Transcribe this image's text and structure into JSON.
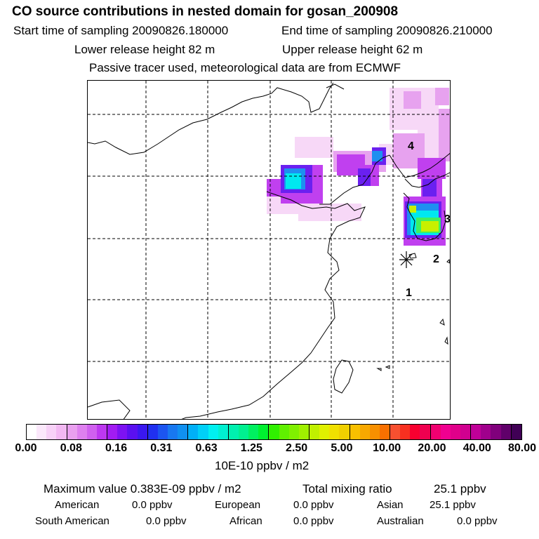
{
  "header": {
    "title": "CO  source contributions in nested domain for gosan_200908",
    "start_time": "Start time of sampling 20090826.180000",
    "end_time": "End time of sampling 20090826.210000",
    "lower_release": "Lower release height   82 m",
    "upper_release": "Upper release height   62 m",
    "tracer_note": "Passive tracer used, meteorological data are from ECMWF"
  },
  "chart_data": {
    "type": "heatmap",
    "title": "CO  source contributions in nested domain for gosan_200908",
    "colorbar": {
      "tick_labels": [
        "0.00",
        "0.08",
        "0.16",
        "0.31",
        "0.63",
        "1.25",
        "2.50",
        "5.00",
        "10.00",
        "20.00",
        "40.00",
        "80.00"
      ],
      "unit": "10E-10 ppbv / m2",
      "colors": [
        "#ffffff",
        "#fbe8fb",
        "#f7d1f7",
        "#f2b8f2",
        "#e9a0ef",
        "#de80ef",
        "#d060ef",
        "#bd38f0",
        "#a21cf2",
        "#7d12f2",
        "#5a10f0",
        "#3a18f0",
        "#2030f0",
        "#1c55f0",
        "#1878f0",
        "#1090f0",
        "#00b0f8",
        "#00d0f8",
        "#00f0f0",
        "#00f0d0",
        "#00f0b0",
        "#00f090",
        "#00f060",
        "#00f030",
        "#30f000",
        "#60f000",
        "#80f000",
        "#a0f000",
        "#c0f000",
        "#e0f000",
        "#f0e000",
        "#f0d000",
        "#f8c000",
        "#f8a800",
        "#f89000",
        "#f87000",
        "#f85030",
        "#f83020",
        "#f80030",
        "#f00050",
        "#f00070",
        "#f00090",
        "#e0008a",
        "#d00090",
        "#c00098",
        "#a0008c",
        "#80007c",
        "#60006a",
        "#400055"
      ]
    },
    "markers": [
      {
        "label": "1"
      },
      {
        "label": "2"
      },
      {
        "label": "3"
      },
      {
        "label": "4"
      }
    ],
    "receptor": "Gosan"
  },
  "stats": {
    "max_label": "Maximum value  0.383E-09 ppbv / m2",
    "total_label": "Total mixing ratio",
    "total_value": "25.1 ppbv"
  },
  "regions": {
    "american_label": "American",
    "american_value": "0.0 ppbv",
    "european_label": "European",
    "european_value": "0.0 ppbv",
    "asian_label": "Asian",
    "asian_value": "25.1 ppbv",
    "south_american_label": "South American",
    "south_american_value": "0.0 ppbv",
    "african_label": "African",
    "african_value": "0.0 ppbv",
    "australian_label": "Australian",
    "australian_value": "0.0 ppbv"
  }
}
